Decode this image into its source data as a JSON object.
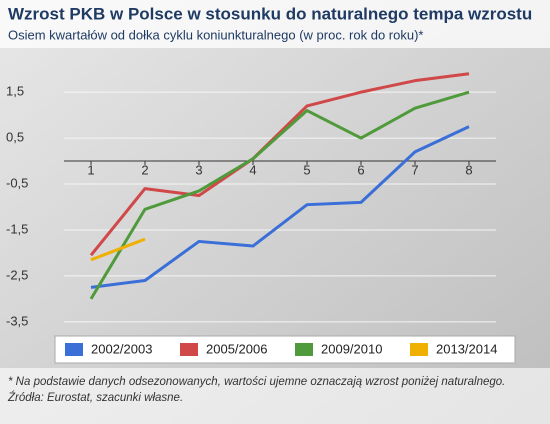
{
  "chart_data": {
    "type": "line",
    "title": "Wzrost PKB  w Polsce w stosunku do naturalnego tempa wzrostu",
    "subtitle": "Osiem kwartałów od dołka cyklu koniunkturalnego (w proc. rok do roku)*",
    "categories": [
      "1",
      "2",
      "3",
      "4",
      "5",
      "6",
      "7",
      "8"
    ],
    "series": [
      {
        "name": "2002/2003",
        "color": "#3b6fd8",
        "values": [
          -2.75,
          -2.6,
          -1.75,
          -1.85,
          -0.95,
          -0.9,
          0.2,
          0.75
        ]
      },
      {
        "name": "2005/2006",
        "color": "#d04848",
        "values": [
          -2.05,
          -0.6,
          -0.75,
          0.05,
          1.2,
          1.5,
          1.75,
          1.9
        ]
      },
      {
        "name": "2009/2010",
        "color": "#4f9a3a",
        "values": [
          -3.0,
          -1.05,
          -0.65,
          0.05,
          1.1,
          0.5,
          1.15,
          1.5
        ]
      },
      {
        "name": "2013/2014",
        "color": "#f0b000",
        "values": [
          -2.15,
          -1.7,
          null,
          null,
          null,
          null,
          null,
          null
        ]
      }
    ],
    "ylim": [
      -3.7,
      2.2
    ],
    "yticks": [
      {
        "value": 1.5,
        "label": "1,5"
      },
      {
        "value": 0.5,
        "label": "0,5"
      },
      {
        "value": -0.5,
        "label": "-0,5"
      },
      {
        "value": -1.5,
        "label": "-1,5"
      },
      {
        "value": -2.5,
        "label": "-2,5"
      },
      {
        "value": -3.5,
        "label": "-3,5"
      }
    ],
    "grid": true,
    "footnote": "* Na podstawie danych odsezonowanych, wartości ujemne  oznaczają wzrost poniżej naturalnego.",
    "source": "Źródła: Eurostat, szacunki własne."
  }
}
